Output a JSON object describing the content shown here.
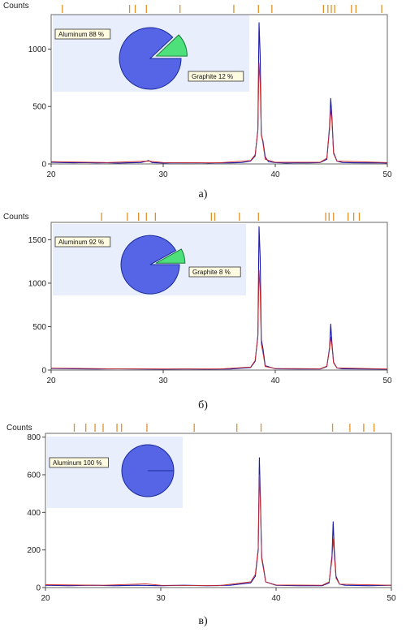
{
  "chart_data": [
    {
      "type": "line",
      "panel_caption": "а)",
      "ylabel": "Counts",
      "xlim": [
        20,
        50
      ],
      "ylim": [
        0,
        1300
      ],
      "x_ticks": [
        20,
        30,
        40,
        50
      ],
      "y_ticks": [
        0,
        500,
        1000
      ],
      "grid": false,
      "series": [
        {
          "color": "#1a1aa8",
          "x": [
            20,
            21,
            22,
            23,
            24,
            25,
            26,
            27,
            28,
            28.7,
            29,
            30,
            31,
            32,
            33,
            34,
            35,
            36,
            37,
            37.8,
            38.2,
            38.45,
            38.55,
            38.65,
            38.75,
            38.9,
            39.1,
            39.4,
            40,
            41,
            42,
            43,
            44,
            44.6,
            44.85,
            44.95,
            45.05,
            45.2,
            45.5,
            46,
            47,
            48,
            49,
            50
          ],
          "y": [
            15,
            12,
            10,
            12,
            9,
            10,
            8,
            10,
            12,
            30,
            12,
            8,
            10,
            9,
            10,
            8,
            10,
            9,
            12,
            25,
            70,
            300,
            1230,
            950,
            250,
            200,
            60,
            20,
            12,
            8,
            10,
            9,
            12,
            40,
            330,
            570,
            420,
            100,
            25,
            12,
            10,
            9,
            10,
            8
          ]
        },
        {
          "color": "#cc2a2a",
          "x": [
            20,
            25,
            28.7,
            30,
            35,
            37.8,
            38.2,
            38.45,
            38.55,
            38.65,
            38.75,
            38.9,
            39.1,
            40,
            44,
            44.6,
            44.85,
            44.95,
            45.05,
            45.2,
            45.5,
            50
          ],
          "y": [
            20,
            12,
            25,
            12,
            10,
            30,
            80,
            290,
            880,
            700,
            260,
            180,
            40,
            15,
            15,
            50,
            300,
            480,
            380,
            90,
            25,
            12
          ]
        }
      ],
      "reference_ticks": [
        21,
        27,
        27.5,
        28.5,
        31.5,
        36.3,
        38.5,
        39.7,
        44.3,
        44.7,
        45,
        45.3,
        46.8,
        47.2,
        49.5
      ],
      "pie": {
        "slices": [
          {
            "label": "Aluminum 88 %",
            "value": 88,
            "color": "#5565e6"
          },
          {
            "label": "Graphite 12 %",
            "value": 12,
            "color": "#4ee07a"
          }
        ]
      }
    },
    {
      "type": "line",
      "panel_caption": "б)",
      "ylabel": "Counts",
      "xlim": [
        20,
        50
      ],
      "ylim": [
        0,
        1700
      ],
      "x_ticks": [
        20,
        30,
        40,
        50
      ],
      "y_ticks": [
        0,
        500,
        1000,
        1500
      ],
      "grid": false,
      "series": [
        {
          "color": "#1a1aa8",
          "x": [
            20,
            22,
            24,
            26,
            28,
            30,
            32,
            34,
            36,
            37.8,
            38.2,
            38.45,
            38.55,
            38.65,
            38.75,
            38.9,
            39.1,
            40,
            42,
            44,
            44.6,
            44.85,
            44.95,
            45.05,
            45.2,
            45.5,
            46,
            48,
            50
          ],
          "y": [
            20,
            15,
            12,
            14,
            12,
            10,
            12,
            10,
            12,
            30,
            100,
            400,
            1650,
            1300,
            350,
            250,
            50,
            15,
            12,
            12,
            40,
            260,
            530,
            320,
            90,
            25,
            15,
            12,
            10
          ]
        },
        {
          "color": "#cc2a2a",
          "x": [
            20,
            25,
            30,
            35,
            37.8,
            38.2,
            38.45,
            38.55,
            38.65,
            38.75,
            38.9,
            39.1,
            40,
            44,
            44.6,
            44.85,
            44.95,
            45.05,
            45.2,
            45.5,
            50
          ],
          "y": [
            22,
            15,
            12,
            12,
            35,
            110,
            380,
            1150,
            900,
            300,
            200,
            40,
            18,
            15,
            45,
            240,
            380,
            280,
            80,
            25,
            12
          ]
        }
      ],
      "reference_ticks": [
        24.5,
        26.8,
        27.8,
        28.5,
        29.3,
        34.3,
        34.6,
        36.8,
        38.5,
        44.5,
        44.8,
        45.2,
        46.5,
        47,
        47.5
      ],
      "pie": {
        "slices": [
          {
            "label": "Aluminum 92 %",
            "value": 92,
            "color": "#5565e6"
          },
          {
            "label": "Graphite 8 %",
            "value": 8,
            "color": "#4ee07a"
          }
        ]
      }
    },
    {
      "type": "line",
      "panel_caption": "в)",
      "ylabel": "Counts",
      "xlim": [
        20,
        50
      ],
      "ylim": [
        0,
        820
      ],
      "x_ticks": [
        20,
        30,
        40,
        50
      ],
      "y_ticks": [
        0,
        200,
        400,
        600,
        800
      ],
      "grid": false,
      "series": [
        {
          "color": "#1a1aa8",
          "x": [
            20,
            22,
            24,
            26,
            28,
            30,
            32,
            34,
            36,
            37.8,
            38.2,
            38.45,
            38.55,
            38.65,
            38.75,
            38.9,
            39.1,
            40,
            42,
            44,
            44.6,
            44.85,
            44.95,
            45.05,
            45.2,
            45.5,
            46,
            48,
            50
          ],
          "y": [
            12,
            10,
            12,
            10,
            12,
            10,
            12,
            10,
            12,
            25,
            60,
            200,
            690,
            450,
            160,
            110,
            30,
            12,
            10,
            10,
            25,
            170,
            350,
            200,
            60,
            18,
            12,
            10,
            12
          ]
        },
        {
          "color": "#cc2a2a",
          "x": [
            20,
            25,
            28.7,
            30,
            35,
            37.8,
            38.2,
            38.45,
            38.55,
            38.65,
            38.75,
            38.9,
            39.1,
            40,
            44,
            44.6,
            44.85,
            44.95,
            45.05,
            45.2,
            45.5,
            50
          ],
          "y": [
            15,
            12,
            20,
            12,
            10,
            30,
            70,
            210,
            600,
            420,
            150,
            100,
            30,
            14,
            12,
            30,
            150,
            260,
            170,
            50,
            18,
            12
          ]
        }
      ],
      "reference_ticks": [
        22.5,
        23.5,
        24.3,
        25,
        26.2,
        26.6,
        28.8,
        32.9,
        36.6,
        38.7,
        44.9,
        46.4,
        47.6,
        48.5
      ],
      "pie": {
        "slices": [
          {
            "label": "Aluminum 100 %",
            "value": 100,
            "color": "#5565e6"
          }
        ]
      }
    }
  ]
}
